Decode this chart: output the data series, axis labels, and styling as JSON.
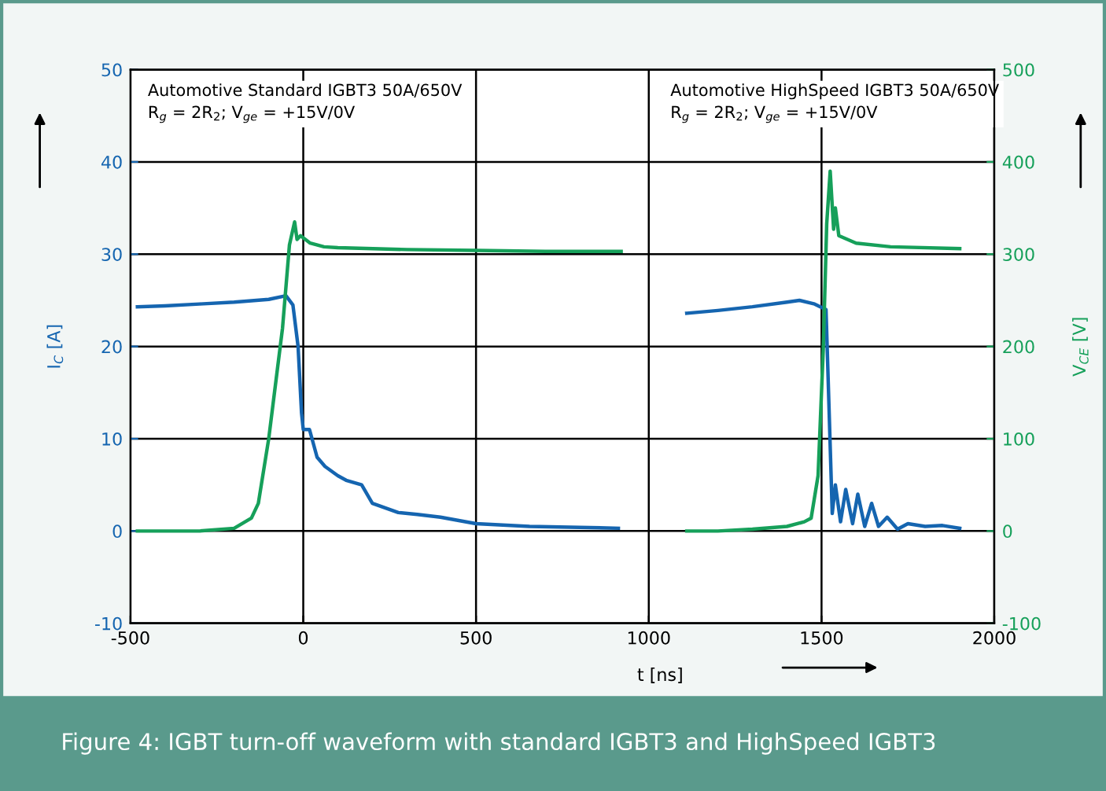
{
  "chart_data": {
    "type": "line",
    "xlabel": "t [ns]",
    "ylabel": "I$_{C}$ [A]",
    "y2label": "V$_{CE}$ [V]",
    "xlim": [
      -500,
      2000
    ],
    "xticks": [
      -500,
      0,
      500,
      1000,
      1500,
      2000
    ],
    "ylim": [
      -10,
      50
    ],
    "yticks": [
      -10,
      0,
      10,
      20,
      30,
      40,
      50
    ],
    "y2lim": [
      -100,
      500
    ],
    "y2ticks": [
      -100,
      0,
      100,
      200,
      300,
      400,
      500
    ],
    "grid": true,
    "legend": false,
    "series": [
      {
        "color": "#1565b0",
        "x": [
          -480,
          -400,
          -300,
          -200,
          -100,
          -50,
          -30,
          -15,
          -5,
          0,
          18,
          40,
          63,
          100,
          124,
          169,
          200,
          275,
          330,
          397,
          500,
          655,
          800,
          912
        ],
        "values": [
          24.3,
          24.4,
          24.6,
          24.8,
          25.1,
          25.5,
          24.5,
          20,
          12.8,
          11,
          11,
          8,
          7,
          6,
          5.5,
          5,
          3,
          2,
          1.8,
          1.5,
          0.8,
          0.5,
          0.4,
          0.3
        ]
      },
      {
        "color": "#16a05a",
        "axis": "y2",
        "x": [
          -480,
          -300,
          -200,
          -150,
          -130,
          -100,
          -60,
          -40,
          -25,
          -18,
          -8,
          20,
          60,
          100,
          300,
          500,
          700,
          920
        ],
        "values": [
          0,
          0,
          3,
          14,
          30,
          100,
          220,
          310,
          335,
          316,
          320,
          312,
          308,
          307,
          305,
          304,
          303,
          303
        ]
      },
      {
        "color": "#1565b0",
        "x": [
          1110,
          1200,
          1300,
          1400,
          1436,
          1480,
          1513,
          1524,
          1531,
          1540,
          1555,
          1570,
          1590,
          1605,
          1625,
          1645,
          1665,
          1690,
          1720,
          1750,
          1800,
          1850,
          1900
        ],
        "values": [
          23.6,
          23.9,
          24.3,
          24.8,
          25,
          24.6,
          24,
          10.5,
          1.9,
          5,
          1,
          4.5,
          0.8,
          4,
          0.5,
          3,
          0.5,
          1.5,
          0.2,
          0.8,
          0.5,
          0.6,
          0.3
        ]
      },
      {
        "color": "#16a05a",
        "axis": "y2",
        "x": [
          1110,
          1200,
          1300,
          1400,
          1450,
          1470,
          1490,
          1505,
          1515,
          1525,
          1535,
          1540,
          1550,
          1600,
          1700,
          1900
        ],
        "values": [
          0,
          0,
          2,
          5,
          10,
          14,
          60,
          197,
          333,
          390,
          327,
          350,
          320,
          312,
          308,
          306
        ]
      }
    ],
    "annotations": [
      "Automotive Standard IGBT3 50A/650V\nR$_{g}$ = 2R$_{2}$; V$_{ge}$ = +15V/0V",
      "Automotive HighSpeed IGBT3 50A/650V\nR$_{g}$ = 2R$_{2}$; V$_{ge}$ = +15V/0V",
      "Figure 4: IGBT turn-off waveform with standard IGBT3 and HighSpeed IGBT3"
    ]
  }
}
